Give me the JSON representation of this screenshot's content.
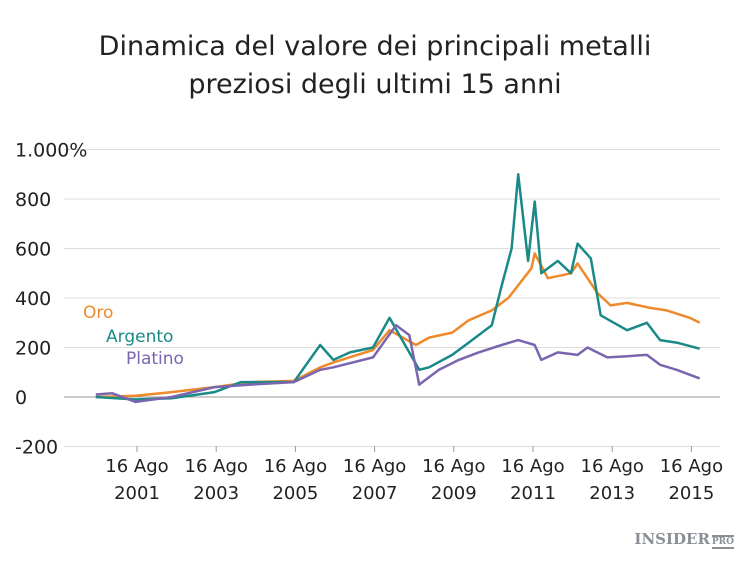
{
  "chart_data": {
    "type": "line",
    "title_lines": [
      "Dinamica del valore dei principali metalli",
      "preziosi degli ultimi 15 anni"
    ],
    "ylim": [
      -200,
      1000
    ],
    "yticks": [
      {
        "value": 1000,
        "label": "1.000%"
      },
      {
        "value": 800,
        "label": "800"
      },
      {
        "value": 600,
        "label": "600"
      },
      {
        "value": 400,
        "label": "400"
      },
      {
        "value": 200,
        "label": "200"
      },
      {
        "value": 0,
        "label": "0"
      },
      {
        "value": -200,
        "label": "-200"
      }
    ],
    "xticks": [
      {
        "date": "2001-08-16",
        "label": [
          "16 Ago",
          "2001"
        ]
      },
      {
        "date": "2003-08-16",
        "label": [
          "16 Ago",
          "2003"
        ]
      },
      {
        "date": "2005-08-16",
        "label": [
          "16 Ago",
          "2005"
        ]
      },
      {
        "date": "2007-08-16",
        "label": [
          "16 Ago",
          "2007"
        ]
      },
      {
        "date": "2009-08-16",
        "label": [
          "16 Ago",
          "2009"
        ]
      },
      {
        "date": "2011-08-16",
        "label": [
          "16 Ago",
          "2011"
        ]
      },
      {
        "date": "2013-08-16",
        "label": [
          "16 Ago",
          "2013"
        ]
      },
      {
        "date": "2015-08-16",
        "label": [
          "16 Ago",
          "2015"
        ]
      }
    ],
    "grid": "horizontal",
    "legend": "left, inline labels",
    "series": [
      {
        "name": "Oro",
        "color": "#ef8a2c",
        "points": [
          [
            "2000-08",
            0
          ],
          [
            "2001-08",
            5
          ],
          [
            "2002-07",
            20
          ],
          [
            "2003-08",
            40
          ],
          [
            "2004-07",
            60
          ],
          [
            "2005-08",
            65
          ],
          [
            "2006-04",
            120
          ],
          [
            "2006-08",
            140
          ],
          [
            "2007-08",
            190
          ],
          [
            "2008-01",
            270
          ],
          [
            "2008-09",
            210
          ],
          [
            "2009-01",
            240
          ],
          [
            "2009-08",
            260
          ],
          [
            "2010-01",
            310
          ],
          [
            "2010-08",
            350
          ],
          [
            "2011-01",
            400
          ],
          [
            "2011-08",
            520
          ],
          [
            "2011-09",
            580
          ],
          [
            "2012-01",
            480
          ],
          [
            "2012-08",
            500
          ],
          [
            "2012-10",
            540
          ],
          [
            "2013-04",
            420
          ],
          [
            "2013-08",
            370
          ],
          [
            "2014-01",
            380
          ],
          [
            "2014-08",
            360
          ],
          [
            "2015-01",
            350
          ],
          [
            "2015-08",
            320
          ],
          [
            "2015-11",
            300
          ]
        ]
      },
      {
        "name": "Argento",
        "color": "#1a8a88",
        "points": [
          [
            "2000-08",
            0
          ],
          [
            "2001-08",
            -10
          ],
          [
            "2002-07",
            -5
          ],
          [
            "2003-08",
            20
          ],
          [
            "2004-04",
            60
          ],
          [
            "2005-08",
            60
          ],
          [
            "2006-04",
            210
          ],
          [
            "2006-08",
            150
          ],
          [
            "2007-01",
            180
          ],
          [
            "2007-08",
            200
          ],
          [
            "2008-01",
            320
          ],
          [
            "2008-04",
            250
          ],
          [
            "2008-10",
            110
          ],
          [
            "2009-01",
            120
          ],
          [
            "2009-08",
            170
          ],
          [
            "2010-01",
            220
          ],
          [
            "2010-08",
            290
          ],
          [
            "2010-11",
            450
          ],
          [
            "2011-02",
            600
          ],
          [
            "2011-04",
            900
          ],
          [
            "2011-07",
            550
          ],
          [
            "2011-09",
            790
          ],
          [
            "2011-11",
            500
          ],
          [
            "2012-04",
            550
          ],
          [
            "2012-08",
            500
          ],
          [
            "2012-10",
            620
          ],
          [
            "2013-02",
            560
          ],
          [
            "2013-05",
            330
          ],
          [
            "2013-09",
            300
          ],
          [
            "2014-01",
            270
          ],
          [
            "2014-07",
            300
          ],
          [
            "2014-11",
            230
          ],
          [
            "2015-04",
            220
          ],
          [
            "2015-11",
            195
          ]
        ]
      },
      {
        "name": "Platino",
        "color": "#7a66ae",
        "points": [
          [
            "2000-08",
            10
          ],
          [
            "2001-01",
            15
          ],
          [
            "2001-08",
            -20
          ],
          [
            "2002-07",
            0
          ],
          [
            "2003-08",
            40
          ],
          [
            "2004-07",
            50
          ],
          [
            "2005-08",
            60
          ],
          [
            "2006-04",
            110
          ],
          [
            "2006-08",
            120
          ],
          [
            "2007-08",
            160
          ],
          [
            "2008-03",
            290
          ],
          [
            "2008-07",
            250
          ],
          [
            "2008-10",
            50
          ],
          [
            "2009-04",
            110
          ],
          [
            "2009-10",
            150
          ],
          [
            "2010-04",
            180
          ],
          [
            "2010-11",
            210
          ],
          [
            "2011-04",
            230
          ],
          [
            "2011-09",
            210
          ],
          [
            "2011-11",
            150
          ],
          [
            "2012-04",
            180
          ],
          [
            "2012-10",
            170
          ],
          [
            "2013-01",
            200
          ],
          [
            "2013-07",
            160
          ],
          [
            "2014-01",
            165
          ],
          [
            "2014-07",
            170
          ],
          [
            "2014-11",
            130
          ],
          [
            "2015-04",
            110
          ],
          [
            "2015-11",
            75
          ]
        ]
      }
    ]
  },
  "logo": {
    "main": "INSIDER",
    "sub": "PRO"
  }
}
